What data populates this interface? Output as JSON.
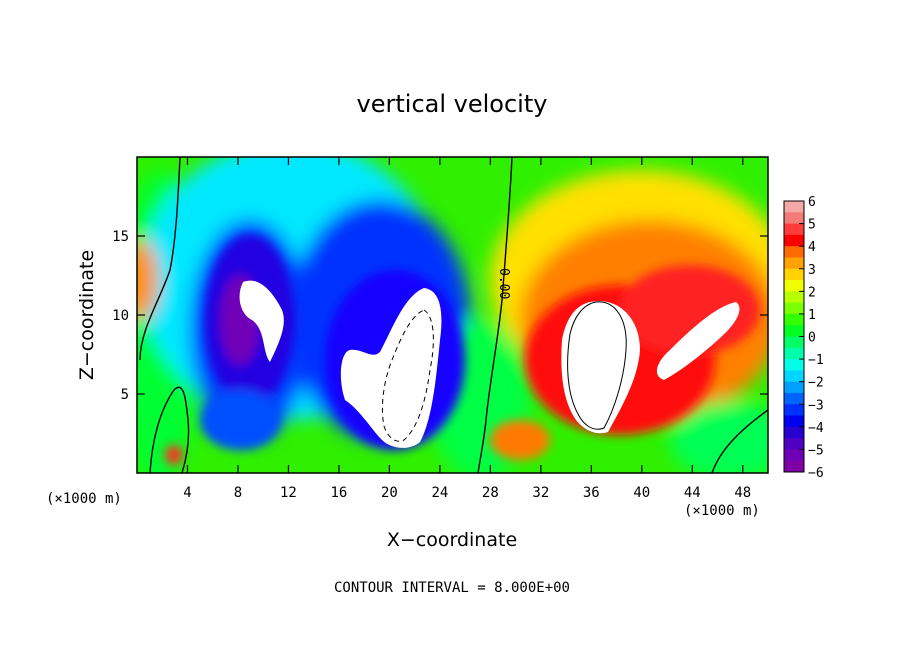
{
  "chart_data": {
    "type": "heatmap",
    "title": "vertical velocity",
    "xlabel": "X−coordinate",
    "ylabel": "Z−coordinate",
    "xlim": [
      0,
      50
    ],
    "ylim": [
      0,
      20
    ],
    "x_ticks": [
      4,
      8,
      12,
      16,
      20,
      24,
      28,
      32,
      36,
      40,
      44,
      48
    ],
    "x_tick_labels": [
      "4",
      "8",
      "12",
      "16",
      "20",
      "24",
      "28",
      "32",
      "36",
      "40",
      "44",
      "48"
    ],
    "y_ticks": [
      5,
      10,
      15
    ],
    "y_tick_labels": [
      "5",
      "10",
      "15"
    ],
    "x_unit_label": "(×1000 m)",
    "y_unit_label": "(×1000 m)",
    "contour_note": "CONTOUR INTERVAL = 8.000E+00",
    "contour_label": "0.00",
    "colorbar": {
      "ticks": [
        6,
        5,
        4,
        3,
        2,
        1,
        0,
        -1,
        -2,
        -3,
        -4,
        -5,
        -6
      ],
      "tick_labels": [
        "6",
        "5",
        "4",
        "3",
        "2",
        "1",
        "0",
        "−1",
        "−2",
        "−3",
        "−4",
        "−5",
        "−6"
      ],
      "colors": [
        "#f4a8a8",
        "#f47a7a",
        "#ff3c3c",
        "#ff0000",
        "#ff6a00",
        "#ffa200",
        "#ffd200",
        "#f0ff00",
        "#b8ff00",
        "#7cff00",
        "#34ff00",
        "#00ff22",
        "#00ff66",
        "#00ffaa",
        "#00ffe6",
        "#00d6ff",
        "#00a0ff",
        "#0064ff",
        "#0030ff",
        "#0000ee",
        "#2800d0",
        "#5000c0",
        "#7000b8",
        "#8000a8"
      ]
    },
    "features": [
      {
        "kind": "downdraft",
        "center": [
          11,
          12
        ],
        "peak": -6
      },
      {
        "kind": "downdraft",
        "center": [
          20,
          9
        ],
        "peak": -6
      },
      {
        "kind": "downdraft",
        "center": [
          9.5,
          10.5
        ],
        "peak": -6
      },
      {
        "kind": "updraft",
        "center": [
          37,
          8
        ],
        "peak": 6
      },
      {
        "kind": "updraft",
        "center": [
          43,
          9
        ],
        "peak": 6
      },
      {
        "kind": "updraft",
        "center": [
          0.5,
          12
        ],
        "peak": 3
      },
      {
        "kind": "updraft",
        "center": [
          3,
          1
        ],
        "peak": 4
      }
    ]
  }
}
